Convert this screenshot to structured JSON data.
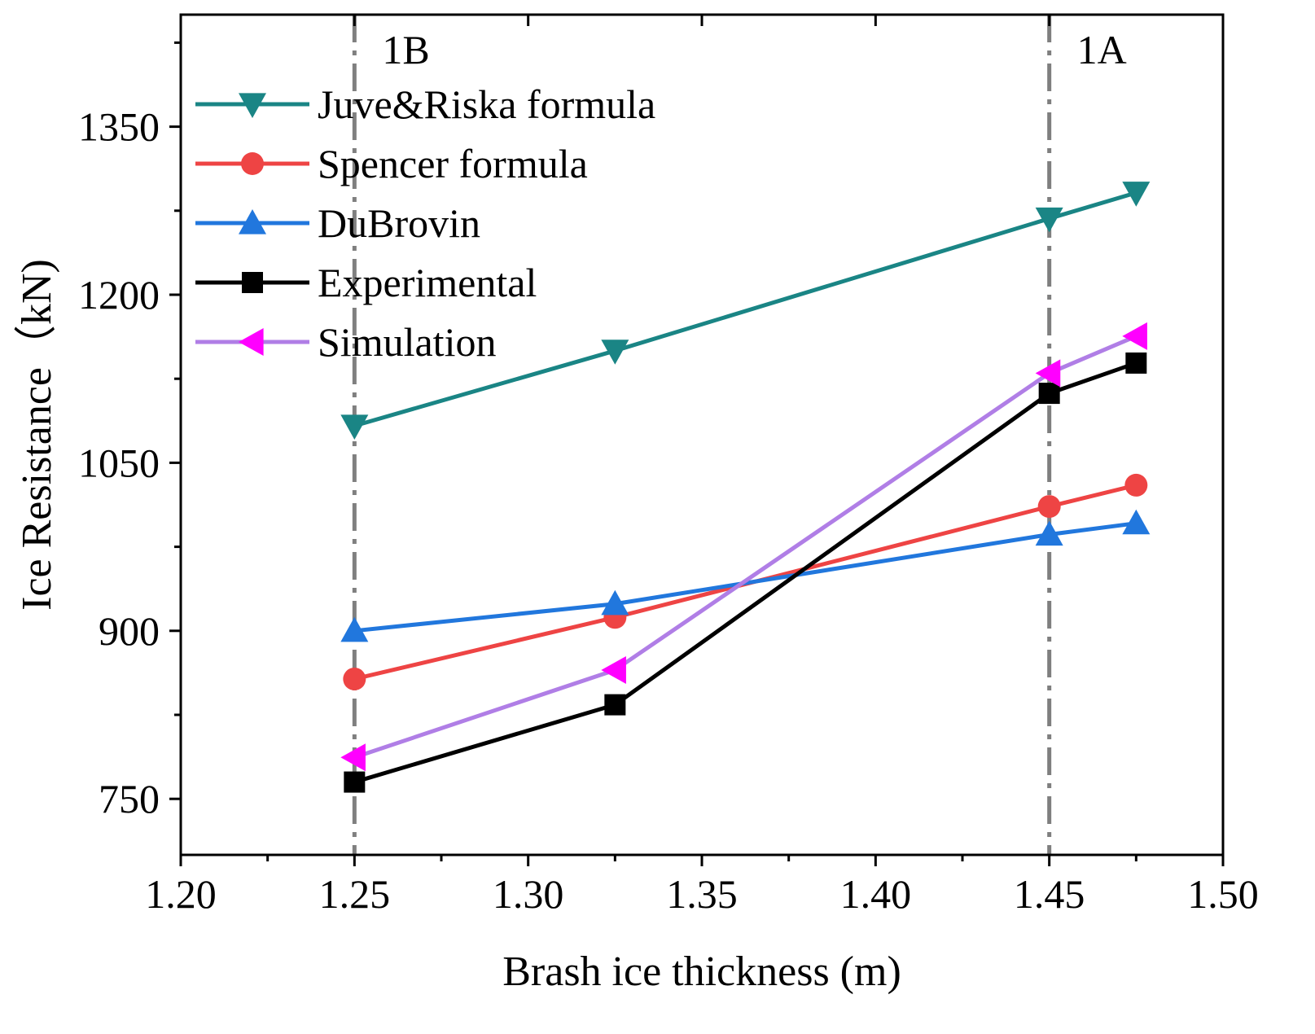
{
  "chart_data": {
    "type": "line",
    "title": "",
    "xlabel": "Brash ice thickness (m)",
    "ylabel": "Ice Resistance（kN)",
    "xlim": [
      1.2,
      1.5
    ],
    "ylim": [
      700,
      1450
    ],
    "xticks": [
      1.2,
      1.25,
      1.3,
      1.35,
      1.4,
      1.45,
      1.5
    ],
    "xtick_labels": [
      "1.20",
      "1.25",
      "1.30",
      "1.35",
      "1.40",
      "1.45",
      "1.50"
    ],
    "yticks": [
      750,
      900,
      1050,
      1200,
      1350
    ],
    "ytick_labels": [
      "750",
      "900",
      "1050",
      "1200",
      "1350"
    ],
    "grid": false,
    "legend_position": "top-left",
    "reference_lines": [
      {
        "x": 1.25,
        "label": "1B",
        "color": "#7f7f7f"
      },
      {
        "x": 1.45,
        "label": "1A",
        "color": "#7f7f7f"
      }
    ],
    "x": [
      1.25,
      1.325,
      1.45,
      1.475
    ],
    "series": [
      {
        "name": "Juve&Riska formula",
        "color": "#1a8585",
        "marker": "triangle-down",
        "values": [
          1083,
          1150,
          1268,
          1291
        ]
      },
      {
        "name": "Spencer formula",
        "color": "#ee4444",
        "marker": "circle",
        "values": [
          857,
          912,
          1011,
          1030
        ]
      },
      {
        "name": "DuBrovin",
        "color": "#2177dd",
        "marker": "triangle-up",
        "values": [
          900,
          924,
          986,
          996
        ]
      },
      {
        "name": "Experimental",
        "color": "#000000",
        "marker": "square",
        "values": [
          765,
          834,
          1112,
          1139
        ]
      },
      {
        "name": "Simulation",
        "color": "#b07ee6",
        "marker_color": "#ff00ff",
        "marker": "triangle-left",
        "values": [
          787,
          865,
          1130,
          1163
        ]
      }
    ]
  }
}
